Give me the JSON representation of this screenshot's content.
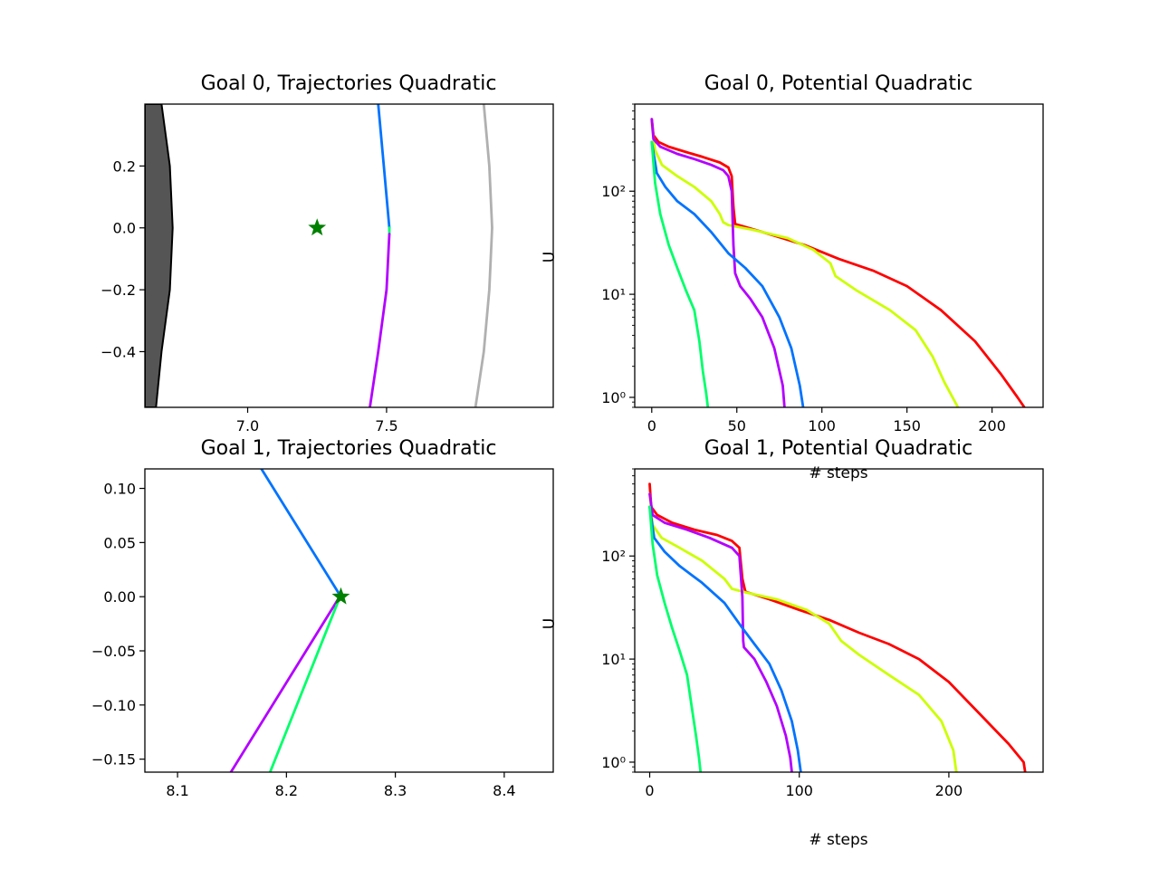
{
  "chart_data": [
    {
      "id": "p00",
      "type": "line",
      "title": "Goal 0, Trajectories Quadratic",
      "xlabel": "",
      "ylabel": "",
      "xlim": [
        6.63,
        8.1
      ],
      "ylim": [
        -0.58,
        0.4
      ],
      "xticks": [
        7.0,
        7.5
      ],
      "xtick_labels": [
        "7.0",
        "7.5"
      ],
      "yticks": [
        0.2,
        0.0,
        -0.2,
        -0.4
      ],
      "ytick_labels": [
        "0.2",
        "0.0",
        "−0.2",
        "−0.4"
      ],
      "obstacle": {
        "color": "#555555",
        "points": [
          [
            6.63,
            0.4
          ],
          [
            6.69,
            0.4
          ],
          [
            6.72,
            0.2
          ],
          [
            6.73,
            0.0
          ],
          [
            6.72,
            -0.2
          ],
          [
            6.69,
            -0.4
          ],
          [
            6.67,
            -0.58
          ],
          [
            6.63,
            -0.58
          ]
        ]
      },
      "goal_marker": {
        "x": 7.25,
        "y": 0.0,
        "color": "#008000",
        "symbol": "star"
      },
      "series": [
        {
          "color": "#b0b0b0",
          "points": [
            [
              7.85,
              0.4
            ],
            [
              7.87,
              0.2
            ],
            [
              7.88,
              0.0
            ],
            [
              7.87,
              -0.2
            ],
            [
              7.85,
              -0.4
            ],
            [
              7.82,
              -0.58
            ]
          ]
        },
        {
          "color": "#0073ff",
          "points": [
            [
              7.47,
              0.4
            ],
            [
              7.49,
              0.2
            ],
            [
              7.51,
              0.0
            ]
          ]
        },
        {
          "color": "#00ff6a",
          "points": [
            [
              7.51,
              0.0
            ],
            [
              7.51,
              -0.02
            ]
          ]
        },
        {
          "color": "#b300ff",
          "points": [
            [
              7.51,
              -0.02
            ],
            [
              7.5,
              -0.2
            ],
            [
              7.47,
              -0.4
            ],
            [
              7.44,
              -0.58
            ]
          ]
        }
      ]
    },
    {
      "id": "p01",
      "type": "line",
      "title": "Goal 0, Potential Quadratic",
      "xlabel": "# steps",
      "ylabel": "U",
      "yscale": "log",
      "xlim": [
        -10,
        230
      ],
      "ylim": [
        0.8,
        700
      ],
      "xticks": [
        0,
        50,
        100,
        150,
        200
      ],
      "xtick_labels": [
        "0",
        "50",
        "100",
        "150",
        "200"
      ],
      "yticks": [
        1,
        10,
        100
      ],
      "ytick_labels": [
        "10⁰",
        "10¹",
        "10²"
      ],
      "series": [
        {
          "color": "#ff0000",
          "points": [
            [
              0,
              500
            ],
            [
              1,
              350
            ],
            [
              4,
              300
            ],
            [
              10,
              270
            ],
            [
              20,
              240
            ],
            [
              30,
              215
            ],
            [
              40,
              190
            ],
            [
              45,
              170
            ],
            [
              47,
              140
            ],
            [
              48,
              70
            ],
            [
              49,
              48
            ],
            [
              55,
              45
            ],
            [
              70,
              38
            ],
            [
              90,
              30
            ],
            [
              110,
              22
            ],
            [
              130,
              17
            ],
            [
              150,
              12
            ],
            [
              170,
              7
            ],
            [
              190,
              3.5
            ],
            [
              205,
              1.7
            ],
            [
              215,
              1.0
            ],
            [
              219,
              0.8
            ]
          ]
        },
        {
          "color": "#ccff00",
          "points": [
            [
              0,
              450
            ],
            [
              2,
              250
            ],
            [
              6,
              180
            ],
            [
              15,
              140
            ],
            [
              25,
              110
            ],
            [
              35,
              80
            ],
            [
              40,
              60
            ],
            [
              42,
              50
            ],
            [
              45,
              47
            ],
            [
              60,
              42
            ],
            [
              80,
              35
            ],
            [
              95,
              27
            ],
            [
              105,
              20
            ],
            [
              108,
              15
            ],
            [
              120,
              11
            ],
            [
              140,
              7
            ],
            [
              155,
              4.5
            ],
            [
              165,
              2.5
            ],
            [
              172,
              1.4
            ],
            [
              180,
              0.8
            ]
          ]
        },
        {
          "color": "#b300ff",
          "points": [
            [
              0,
              500
            ],
            [
              1,
              320
            ],
            [
              5,
              270
            ],
            [
              15,
              230
            ],
            [
              25,
              205
            ],
            [
              35,
              180
            ],
            [
              42,
              160
            ],
            [
              45,
              140
            ],
            [
              47,
              100
            ],
            [
              48,
              30
            ],
            [
              49,
              16
            ],
            [
              52,
              12
            ],
            [
              58,
              9
            ],
            [
              65,
              6
            ],
            [
              72,
              3
            ],
            [
              77,
              1.3
            ],
            [
              78,
              0.8
            ]
          ]
        },
        {
          "color": "#0073ff",
          "points": [
            [
              0,
              300
            ],
            [
              3,
              150
            ],
            [
              8,
              110
            ],
            [
              15,
              80
            ],
            [
              25,
              60
            ],
            [
              35,
              40
            ],
            [
              45,
              25
            ],
            [
              55,
              18
            ],
            [
              65,
              12
            ],
            [
              75,
              6
            ],
            [
              82,
              3
            ],
            [
              87,
              1.3
            ],
            [
              89,
              0.8
            ]
          ]
        },
        {
          "color": "#00ff6a",
          "points": [
            [
              0,
              300
            ],
            [
              2,
              120
            ],
            [
              5,
              60
            ],
            [
              10,
              30
            ],
            [
              15,
              18
            ],
            [
              20,
              11
            ],
            [
              25,
              7
            ],
            [
              28,
              3.5
            ],
            [
              30,
              1.8
            ],
            [
              32,
              1.1
            ],
            [
              33,
              0.8
            ]
          ]
        }
      ]
    },
    {
      "id": "p10",
      "type": "line",
      "title": "Goal 1, Trajectories Quadratic",
      "xlabel": "",
      "ylabel": "",
      "xlim": [
        8.07,
        8.445
      ],
      "ylim": [
        -0.162,
        0.118
      ],
      "xticks": [
        8.1,
        8.2,
        8.3,
        8.4
      ],
      "xtick_labels": [
        "8.1",
        "8.2",
        "8.3",
        "8.4"
      ],
      "yticks": [
        0.1,
        0.05,
        0.0,
        -0.05,
        -0.1,
        -0.15
      ],
      "ytick_labels": [
        "0.10",
        "0.05",
        "0.00",
        "−0.05",
        "−0.10",
        "−0.15"
      ],
      "goal_marker": {
        "x": 8.25,
        "y": 0.0,
        "color": "#008000",
        "symbol": "star"
      },
      "series": [
        {
          "color": "#0073ff",
          "points": [
            [
              8.177,
              0.118
            ],
            [
              8.25,
              0.0
            ]
          ]
        },
        {
          "color": "#b300ff",
          "points": [
            [
              8.247,
              -0.003
            ],
            [
              8.149,
              -0.162
            ]
          ]
        },
        {
          "color": "#00ff6a",
          "points": [
            [
              8.248,
              -0.003
            ],
            [
              8.185,
              -0.162
            ]
          ]
        }
      ]
    },
    {
      "id": "p11",
      "type": "line",
      "title": "Goal 1, Potential Quadratic",
      "xlabel": "# steps",
      "ylabel": "U",
      "yscale": "log",
      "xlim": [
        -10,
        263
      ],
      "ylim": [
        0.8,
        700
      ],
      "xticks": [
        0,
        100,
        200
      ],
      "xtick_labels": [
        "0",
        "100",
        "200"
      ],
      "yticks": [
        1,
        10,
        100
      ],
      "ytick_labels": [
        "10⁰",
        "10¹",
        "10²"
      ],
      "series": [
        {
          "color": "#ff0000",
          "points": [
            [
              0,
              500
            ],
            [
              1,
              300
            ],
            [
              5,
              250
            ],
            [
              15,
              210
            ],
            [
              30,
              180
            ],
            [
              45,
              160
            ],
            [
              55,
              140
            ],
            [
              60,
              120
            ],
            [
              62,
              60
            ],
            [
              64,
              45
            ],
            [
              80,
              38
            ],
            [
              100,
              30
            ],
            [
              120,
              24
            ],
            [
              140,
              18
            ],
            [
              160,
              14
            ],
            [
              180,
              10
            ],
            [
              200,
              6
            ],
            [
              220,
              3
            ],
            [
              240,
              1.5
            ],
            [
              250,
              1.0
            ],
            [
              251,
              0.8
            ]
          ]
        },
        {
          "color": "#ccff00",
          "points": [
            [
              0,
              400
            ],
            [
              2,
              200
            ],
            [
              8,
              150
            ],
            [
              20,
              120
            ],
            [
              35,
              90
            ],
            [
              50,
              60
            ],
            [
              55,
              48
            ],
            [
              65,
              44
            ],
            [
              85,
              38
            ],
            [
              105,
              30
            ],
            [
              120,
              22
            ],
            [
              128,
              15
            ],
            [
              140,
              11
            ],
            [
              160,
              7
            ],
            [
              180,
              4.5
            ],
            [
              195,
              2.5
            ],
            [
              203,
              1.3
            ],
            [
              205,
              0.8
            ]
          ]
        },
        {
          "color": "#b300ff",
          "points": [
            [
              0,
              400
            ],
            [
              2,
              250
            ],
            [
              10,
              210
            ],
            [
              25,
              180
            ],
            [
              40,
              150
            ],
            [
              55,
              120
            ],
            [
              60,
              100
            ],
            [
              62,
              40
            ],
            [
              62.5,
              15
            ],
            [
              63,
              13
            ],
            [
              70,
              10
            ],
            [
              78,
              6
            ],
            [
              85,
              3.5
            ],
            [
              91,
              1.8
            ],
            [
              94,
              1.1
            ],
            [
              95,
              0.8
            ]
          ]
        },
        {
          "color": "#0073ff",
          "points": [
            [
              0,
              300
            ],
            [
              3,
              150
            ],
            [
              10,
              110
            ],
            [
              20,
              80
            ],
            [
              35,
              55
            ],
            [
              50,
              35
            ],
            [
              62,
              20
            ],
            [
              70,
              14
            ],
            [
              80,
              9
            ],
            [
              88,
              5
            ],
            [
              95,
              2.5
            ],
            [
              99,
              1.3
            ],
            [
              101,
              0.8
            ]
          ]
        },
        {
          "color": "#00ff6a",
          "points": [
            [
              0,
              300
            ],
            [
              2,
              130
            ],
            [
              5,
              65
            ],
            [
              10,
              35
            ],
            [
              15,
              20
            ],
            [
              20,
              12
            ],
            [
              25,
              7
            ],
            [
              28,
              3.5
            ],
            [
              31,
              1.8
            ],
            [
              33,
              1.1
            ],
            [
              34,
              0.8
            ]
          ]
        }
      ]
    }
  ]
}
